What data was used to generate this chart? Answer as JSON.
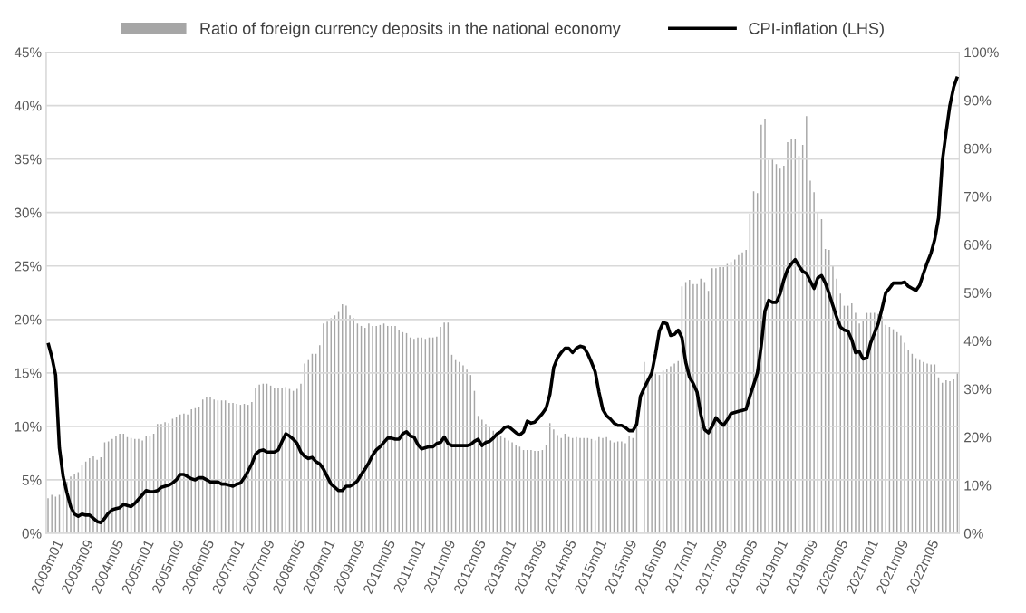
{
  "chart_data": {
    "type": "bar",
    "legend": "top",
    "grid": "y",
    "marker": "none",
    "line_style": "solid",
    "categories": [
      "2003m01",
      null,
      null,
      null,
      null,
      null,
      null,
      null,
      "2003m09",
      null,
      null,
      null,
      null,
      null,
      null,
      null,
      "2004m05",
      null,
      null,
      null,
      null,
      null,
      null,
      null,
      "2005m01",
      null,
      null,
      null,
      null,
      null,
      null,
      null,
      "2005m09",
      null,
      null,
      null,
      null,
      null,
      null,
      null,
      "2006m05",
      null,
      null,
      null,
      null,
      null,
      null,
      null,
      "2007m01",
      null,
      null,
      null,
      null,
      null,
      null,
      null,
      "2007m09",
      null,
      null,
      null,
      null,
      null,
      null,
      null,
      "2008m05",
      null,
      null,
      null,
      null,
      null,
      null,
      null,
      "2009m01",
      null,
      null,
      null,
      null,
      null,
      null,
      null,
      "2009m09",
      null,
      null,
      null,
      null,
      null,
      null,
      null,
      "2010m05",
      null,
      null,
      null,
      null,
      null,
      null,
      null,
      "2011m01",
      null,
      null,
      null,
      null,
      null,
      null,
      null,
      "2011m09",
      null,
      null,
      null,
      null,
      null,
      null,
      null,
      "2012m05",
      null,
      null,
      null,
      null,
      null,
      null,
      null,
      "2013m01",
      null,
      null,
      null,
      null,
      null,
      null,
      null,
      "2013m09",
      null,
      null,
      null,
      null,
      null,
      null,
      null,
      "2014m05",
      null,
      null,
      null,
      null,
      null,
      null,
      null,
      "2015m01",
      null,
      null,
      null,
      null,
      null,
      null,
      null,
      "2015m09",
      null,
      null,
      null,
      null,
      null,
      null,
      null,
      "2016m05",
      null,
      null,
      null,
      null,
      null,
      null,
      null,
      "2017m01",
      null,
      null,
      null,
      null,
      null,
      null,
      null,
      "2017m09",
      null,
      null,
      null,
      null,
      null,
      null,
      null,
      "2018m05",
      null,
      null,
      null,
      null,
      null,
      null,
      null,
      "2019m01",
      null,
      null,
      null,
      null,
      null,
      null,
      null,
      "2019m09",
      null,
      null,
      null,
      null,
      null,
      null,
      null,
      "2020m05",
      null,
      null,
      null,
      null,
      null,
      null,
      null,
      "2021m01",
      null,
      null,
      null,
      null,
      null,
      null,
      null,
      "2021m09",
      null,
      null,
      null,
      null,
      null,
      null,
      null,
      "2022m05",
      null,
      null,
      null,
      null,
      null,
      null,
      null,
      null,
      null
    ],
    "ylim": [
      0,
      45
    ],
    "yticks": [
      {
        "value": 0,
        "label": "0%"
      },
      {
        "value": 5,
        "label": "5%"
      },
      {
        "value": 10,
        "label": "10%"
      },
      {
        "value": 15,
        "label": "15%"
      },
      {
        "value": 20,
        "label": "20%"
      },
      {
        "value": 25,
        "label": "25%"
      },
      {
        "value": 30,
        "label": "30%"
      },
      {
        "value": 35,
        "label": "35%"
      },
      {
        "value": 40,
        "label": "40%"
      },
      {
        "value": 45,
        "label": "45%"
      }
    ],
    "y2lim": [
      0,
      100
    ],
    "y2ticks": [
      {
        "value": 0,
        "label": "0%"
      },
      {
        "value": 10,
        "label": "10%"
      },
      {
        "value": 20,
        "label": "20%"
      },
      {
        "value": 30,
        "label": "30%"
      },
      {
        "value": 40,
        "label": "40%"
      },
      {
        "value": 50,
        "label": "50%"
      },
      {
        "value": 60,
        "label": "60%"
      },
      {
        "value": 70,
        "label": "70%"
      },
      {
        "value": 80,
        "label": "80%"
      },
      {
        "value": 90,
        "label": "90%"
      },
      {
        "value": 100,
        "label": "100%"
      }
    ],
    "series": [
      {
        "name": "Ratio of foreign currency deposits in the national economy",
        "axis": "y2",
        "color": "#a6a6a6",
        "values": [
          7.3,
          8.0,
          7.6,
          8.0,
          9.6,
          10.7,
          11.8,
          12.4,
          12.7,
          14.2,
          14.9,
          15.6,
          16.0,
          15.3,
          15.8,
          18.9,
          19.1,
          19.6,
          20.2,
          20.7,
          20.7,
          20.0,
          19.8,
          19.6,
          19.6,
          19.3,
          20.2,
          20.2,
          20.7,
          22.7,
          22.7,
          23.1,
          22.9,
          23.8,
          24.2,
          24.7,
          24.9,
          24.7,
          25.8,
          26.0,
          26.2,
          27.8,
          28.4,
          28.4,
          27.8,
          27.6,
          27.6,
          27.6,
          27.1,
          27.1,
          26.9,
          26.7,
          26.9,
          26.7,
          27.3,
          30.2,
          30.9,
          31.1,
          31.1,
          30.7,
          30.2,
          30.2,
          30.2,
          30.4,
          30.0,
          29.6,
          30.0,
          31.1,
          35.3,
          36.0,
          37.3,
          37.3,
          39.1,
          43.6,
          44.0,
          44.7,
          45.3,
          46.0,
          47.6,
          47.3,
          45.3,
          44.7,
          43.6,
          43.1,
          42.7,
          43.6,
          43.1,
          43.1,
          43.3,
          43.6,
          43.1,
          43.1,
          43.1,
          42.2,
          41.8,
          41.6,
          40.7,
          40.4,
          40.7,
          40.7,
          40.4,
          40.7,
          40.7,
          40.9,
          42.9,
          43.8,
          43.8,
          37.1,
          36.0,
          35.6,
          34.9,
          34.0,
          32.9,
          29.6,
          24.4,
          23.6,
          22.7,
          22.0,
          21.3,
          20.7,
          20.2,
          19.8,
          19.3,
          18.9,
          18.4,
          18.0,
          17.3,
          17.3,
          17.3,
          17.1,
          17.1,
          17.3,
          18.4,
          22.9,
          21.6,
          20.4,
          19.8,
          20.7,
          20.0,
          19.8,
          20.0,
          19.8,
          19.8,
          19.8,
          19.6,
          19.3,
          20.0,
          19.8,
          20.0,
          19.3,
          18.9,
          19.1,
          19.1,
          18.7,
          20.2,
          19.8,
          25.6,
          null,
          35.6,
          31.3,
          33.3,
          33.3,
          32.9,
          33.8,
          34.2,
          34.7,
          35.3,
          35.8,
          51.3,
          52.2,
          52.7,
          51.8,
          51.8,
          52.9,
          52.2,
          50.4,
          55.1,
          55.1,
          55.3,
          55.3,
          56.0,
          56.4,
          56.9,
          57.8,
          58.4,
          58.9,
          66.4,
          71.1,
          70.7,
          84.9,
          86.2,
          77.6,
          78.0,
          76.7,
          75.8,
          76.4,
          81.3,
          82.0,
          82.0,
          78.4,
          80.7,
          86.7,
          73.3,
          70.9,
          66.7,
          65.3,
          59.1,
          58.9,
          55.6,
          52.9,
          49.8,
          47.3,
          47.3,
          47.8,
          45.8,
          43.6,
          44.2,
          45.8,
          45.8,
          45.8,
          45.6,
          45.1,
          43.3,
          42.9,
          42.4,
          41.8,
          41.1,
          39.6,
          38.2,
          37.3,
          36.4,
          36.0,
          35.6,
          35.3,
          35.1,
          35.1,
          32.4,
          31.3,
          31.8,
          31.6,
          32.0,
          33.3
        ]
      },
      {
        "name": "CPI-inflation (LHS)",
        "type": "line",
        "axis": "y",
        "color": "#000000",
        "values": [
          17.8,
          16.5,
          14.8,
          8.0,
          5.3,
          3.8,
          2.5,
          1.8,
          1.6,
          1.8,
          1.7,
          1.7,
          1.4,
          1.1,
          1.0,
          1.4,
          1.9,
          2.2,
          2.3,
          2.4,
          2.7,
          2.6,
          2.5,
          2.8,
          3.2,
          3.6,
          4.0,
          3.9,
          3.9,
          4.0,
          4.3,
          4.4,
          4.5,
          4.7,
          5.0,
          5.5,
          5.5,
          5.3,
          5.1,
          5.0,
          5.2,
          5.2,
          5.0,
          4.8,
          4.8,
          4.8,
          4.6,
          4.6,
          4.5,
          4.4,
          4.6,
          4.7,
          5.2,
          5.8,
          6.5,
          7.4,
          7.7,
          7.8,
          7.6,
          7.6,
          7.6,
          7.8,
          8.6,
          9.3,
          9.1,
          8.8,
          8.4,
          7.6,
          7.2,
          7.0,
          7.1,
          6.7,
          6.5,
          6.0,
          5.3,
          4.6,
          4.3,
          4.0,
          4.0,
          4.4,
          4.4,
          4.6,
          4.9,
          5.5,
          6.0,
          6.6,
          7.3,
          7.8,
          8.1,
          8.5,
          8.9,
          8.9,
          8.8,
          8.8,
          9.3,
          9.5,
          9.1,
          9.0,
          8.3,
          7.9,
          8.0,
          8.1,
          8.1,
          8.4,
          8.5,
          9.0,
          8.4,
          8.2,
          8.2,
          8.2,
          8.2,
          8.2,
          8.3,
          8.6,
          8.8,
          8.2,
          8.5,
          8.6,
          8.9,
          9.3,
          9.5,
          9.9,
          10.0,
          9.7,
          9.4,
          9.2,
          9.5,
          10.5,
          10.3,
          10.4,
          10.8,
          11.2,
          11.7,
          13.0,
          15.5,
          16.4,
          16.9,
          17.3,
          17.3,
          16.9,
          17.3,
          17.5,
          17.4,
          16.8,
          16.0,
          15.1,
          13.2,
          11.6,
          11.0,
          10.7,
          10.3,
          10.1,
          10.1,
          9.9,
          9.6,
          9.6,
          10.2,
          12.8,
          13.6,
          14.3,
          15.0,
          16.8,
          18.9,
          19.7,
          19.6,
          18.5,
          18.6,
          19.0,
          18.3,
          16.0,
          14.6,
          14.0,
          13.2,
          11.1,
          9.7,
          9.4,
          10.0,
          10.8,
          10.4,
          10.1,
          10.6,
          11.2,
          11.3,
          11.4,
          11.5,
          11.6,
          12.8,
          13.9,
          15.0,
          17.5,
          20.8,
          21.8,
          21.6,
          21.6,
          22.4,
          23.7,
          24.7,
          25.2,
          25.6,
          25.0,
          24.5,
          24.3,
          23.6,
          22.9,
          23.9,
          24.1,
          23.4,
          22.4,
          21.3,
          20.2,
          19.3,
          19.0,
          18.9,
          18.1,
          16.9,
          17.0,
          16.3,
          16.4,
          17.8,
          18.7,
          19.6,
          21.0,
          22.5,
          22.9,
          23.4,
          23.4,
          23.4,
          23.5,
          23.1,
          22.9,
          22.7,
          23.2,
          24.3,
          25.3,
          26.2,
          27.5,
          29.5,
          34.8,
          37.5,
          40.0,
          41.7,
          42.7
        ]
      }
    ]
  }
}
